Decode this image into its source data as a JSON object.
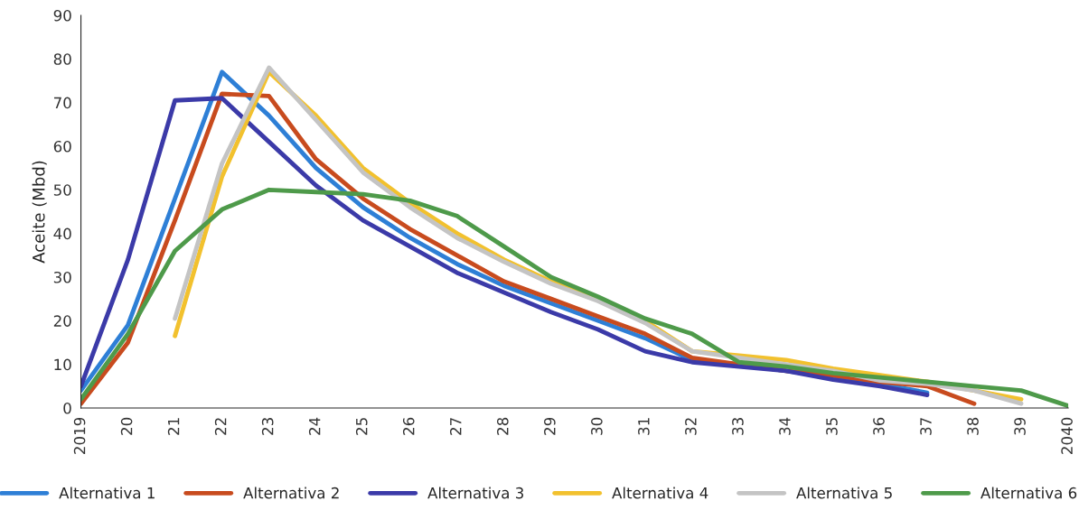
{
  "chart_data": {
    "type": "line",
    "ylabel": "Aceite (Mbd)",
    "categories": [
      "2019",
      "20",
      "21",
      "22",
      "23",
      "24",
      "25",
      "26",
      "27",
      "28",
      "29",
      "30",
      "31",
      "32",
      "33",
      "34",
      "35",
      "36",
      "37",
      "38",
      "39",
      "2040"
    ],
    "ylim": [
      0,
      90
    ],
    "yticks": [
      0,
      10,
      20,
      30,
      40,
      50,
      60,
      70,
      80,
      90
    ],
    "grid": false,
    "legend": "bottom",
    "marker": "none",
    "line_style": "solid",
    "series": [
      {
        "name": "Alternativa 1",
        "color": "#2e7fd6",
        "values": [
          4,
          19,
          48,
          77,
          67,
          55,
          46,
          39,
          33,
          28,
          24,
          20,
          16,
          11,
          10,
          8.5,
          7,
          5.5,
          3.5,
          null,
          null,
          null
        ]
      },
      {
        "name": "Alternativa 2",
        "color": "#c84b1e",
        "values": [
          1,
          15,
          43,
          72,
          71.5,
          57,
          48,
          41,
          35,
          29,
          25,
          21,
          17,
          11.5,
          10,
          8.5,
          7.5,
          6,
          5,
          1,
          null,
          null
        ]
      },
      {
        "name": "Alternativa 3",
        "color": "#3b3aa8",
        "values": [
          5,
          34,
          70.5,
          71,
          61,
          51,
          43,
          37,
          31,
          26.5,
          22,
          18,
          13,
          10.5,
          9.5,
          8.5,
          6.5,
          5,
          3,
          null,
          null,
          null
        ]
      },
      {
        "name": "Alternativa 4",
        "color": "#f2c12e",
        "values": [
          null,
          null,
          16.5,
          53,
          77,
          67,
          55,
          47,
          40,
          34,
          29,
          25,
          20,
          13,
          12,
          11,
          9,
          7.5,
          6,
          4,
          2,
          null
        ]
      },
      {
        "name": "Alternativa 5",
        "color": "#c4c4c4",
        "values": [
          null,
          null,
          20.5,
          56,
          78,
          66,
          54,
          46,
          39,
          33.5,
          28.5,
          24.5,
          19.5,
          13,
          11.5,
          10,
          8.5,
          6.3,
          5.5,
          4,
          1,
          null
        ]
      },
      {
        "name": "Alternativa 6",
        "color": "#4e9a4a",
        "values": [
          2,
          17,
          36,
          45.5,
          50,
          49.5,
          49,
          47.5,
          44,
          37,
          30,
          25.5,
          20.5,
          17,
          10.5,
          9.5,
          8,
          7,
          6,
          5,
          4,
          0.5
        ]
      }
    ]
  }
}
